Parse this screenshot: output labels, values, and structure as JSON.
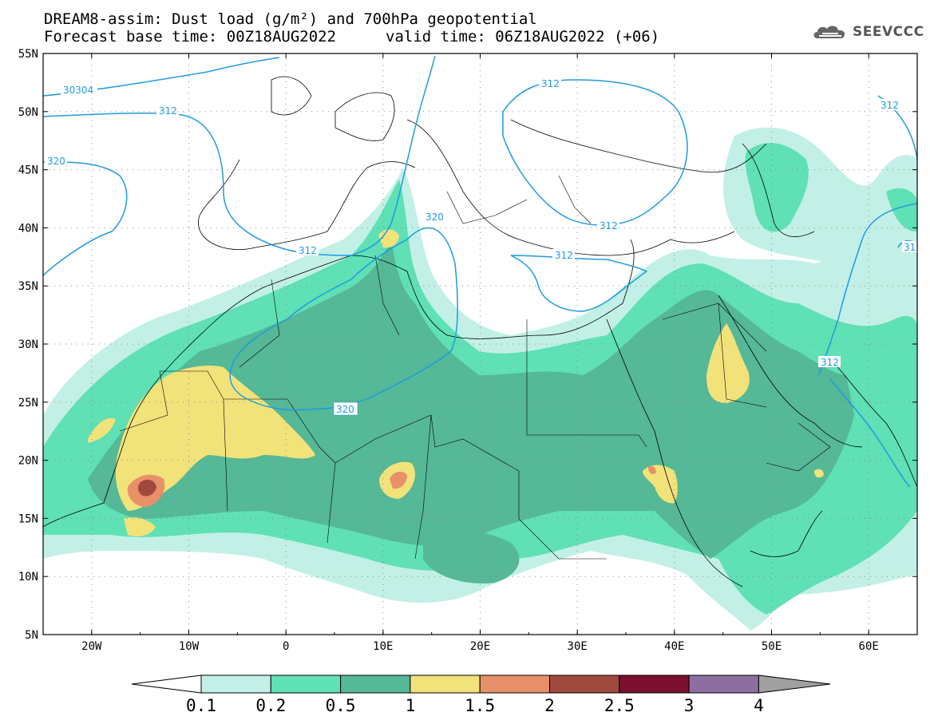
{
  "title": {
    "line1": "DREAM8-assim: Dust load (g/m²) and 700hPa geopotential",
    "line2_left": "Forecast base time: 00Z18AUG2022",
    "line2_right": "valid time: 06Z18AUG2022 (+06)"
  },
  "logo": {
    "text": "SEEVCCC",
    "icon": "cloud-icon"
  },
  "map": {
    "lat_labels": [
      "55N",
      "50N",
      "45N",
      "40N",
      "35N",
      "30N",
      "25N",
      "20N",
      "15N",
      "10N",
      "5N"
    ],
    "lon_labels": [
      "20W",
      "10W",
      "0",
      "10E",
      "20E",
      "30E",
      "40E",
      "50E",
      "60E"
    ],
    "contour_labels": [
      "30304",
      "312",
      "320",
      "312",
      "320",
      "312",
      "312",
      "312",
      "312",
      "320",
      "312",
      "31"
    ],
    "dust_levels": {
      "very_light": "#c2f0e6",
      "light": "#5fe0b5",
      "medium": "#55b896",
      "yellow": "#f2e27a",
      "orange": "#e8906a",
      "dark_red": "#a04a3e"
    },
    "contour_color": "#1e9be3"
  },
  "colorbar": {
    "labels": [
      "0.1",
      "0.2",
      "0.5",
      "1",
      "1.5",
      "2",
      "2.5",
      "3",
      "4"
    ],
    "colors": [
      "#ffffff",
      "#c2f0e6",
      "#5fe0b5",
      "#55b896",
      "#f2e27a",
      "#e8906a",
      "#a04a3e",
      "#7a0f2f",
      "#8c6fa0",
      "#a0a0a0"
    ]
  }
}
